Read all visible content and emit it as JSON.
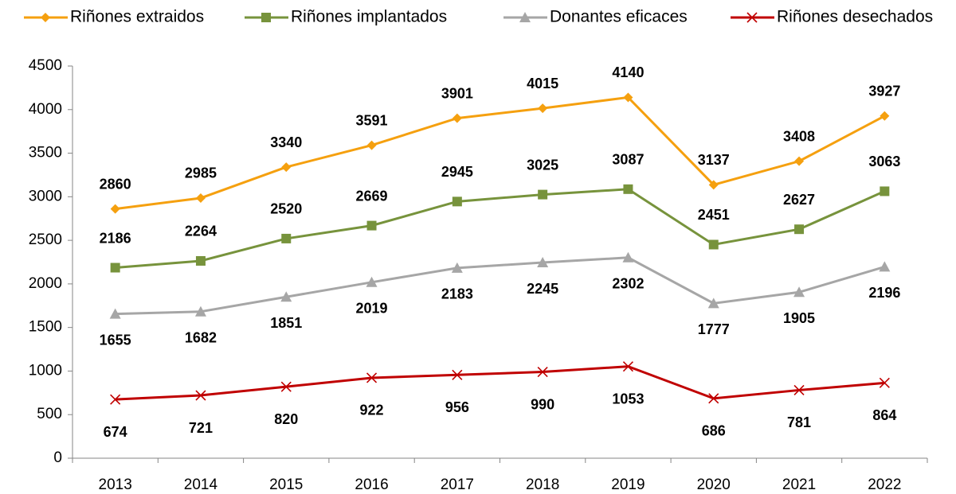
{
  "chart_data": {
    "type": "line",
    "categories": [
      "2013",
      "2014",
      "2015",
      "2016",
      "2017",
      "2018",
      "2019",
      "2020",
      "2021",
      "2022"
    ],
    "series": [
      {
        "name": "Riñones extraidos",
        "color": "#f5a00f",
        "marker": "diamond",
        "values": [
          2860,
          2985,
          3340,
          3591,
          3901,
          4015,
          4140,
          3137,
          3408,
          3927
        ]
      },
      {
        "name": "Riñones implantados",
        "color": "#77933c",
        "marker": "square",
        "values": [
          2186,
          2264,
          2520,
          2669,
          2945,
          3025,
          3087,
          2451,
          2627,
          3063
        ]
      },
      {
        "name": "Donantes eficaces",
        "color": "#a6a6a6",
        "marker": "triangle",
        "values": [
          1655,
          1682,
          1851,
          2019,
          2183,
          2245,
          2302,
          1777,
          1905,
          2196
        ]
      },
      {
        "name": "Riñones desechados",
        "color": "#c00000",
        "marker": "x",
        "values": [
          674,
          721,
          820,
          922,
          956,
          990,
          1053,
          686,
          781,
          864
        ]
      }
    ],
    "ylim": [
      0,
      4500
    ],
    "yticks": [
      0,
      500,
      1000,
      1500,
      2000,
      2500,
      3000,
      3500,
      4000,
      4500
    ],
    "grid": false,
    "legend": "top"
  }
}
